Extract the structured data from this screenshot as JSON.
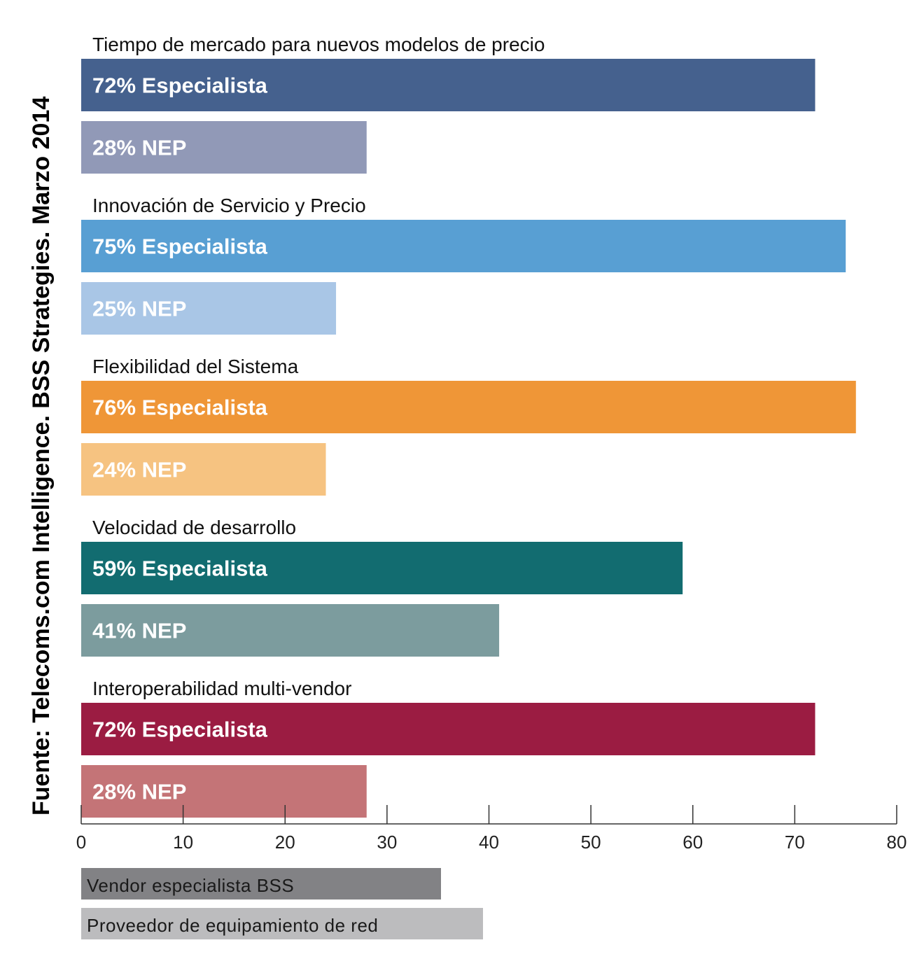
{
  "source": "Fuente: Telecoms.com Intelligence. BSS Strategies. Marzo 2014",
  "chart_data": {
    "type": "bar",
    "orientation": "horizontal",
    "xlim": [
      0,
      80
    ],
    "xticks": [
      0,
      10,
      20,
      30,
      40,
      50,
      60,
      70,
      80
    ],
    "grid": false,
    "groups": [
      {
        "title": "Tiempo de mercado para nuevos modelos de precio",
        "bars": [
          {
            "value": 72,
            "label": "72% Especialista",
            "color": "#45618e"
          },
          {
            "value": 28,
            "label": "28% NEP",
            "color": "#9199b7"
          }
        ]
      },
      {
        "title": "Innovación de Servicio y Precio",
        "bars": [
          {
            "value": 75,
            "label": "75% Especialista",
            "color": "#589fd3"
          },
          {
            "value": 25,
            "label": "25% NEP",
            "color": "#a9c6e6"
          }
        ]
      },
      {
        "title": "Flexibilidad del Sistema",
        "bars": [
          {
            "value": 76,
            "label": "76% Especialista",
            "color": "#ef9637"
          },
          {
            "value": 24,
            "label": "24% NEP",
            "color": "#f6c381"
          }
        ]
      },
      {
        "title": "Velocidad de desarrollo",
        "bars": [
          {
            "value": 59,
            "label": "59% Especialista",
            "color": "#126c70"
          },
          {
            "value": 41,
            "label": "41% NEP",
            "color": "#7c9c9e"
          }
        ]
      },
      {
        "title": "Interoperabilidad multi-vendor",
        "bars": [
          {
            "value": 72,
            "label": "72% Especialista",
            "color": "#9b1c42"
          },
          {
            "value": 28,
            "label": "28% NEP",
            "color": "#c47477"
          }
        ]
      }
    ],
    "legend": [
      {
        "label": "Vendor especialista BSS",
        "color": "#828285"
      },
      {
        "label": "Proveedor de equipamiento de red",
        "color": "#bcbcbe"
      }
    ],
    "legend_position": "bottom-left"
  }
}
